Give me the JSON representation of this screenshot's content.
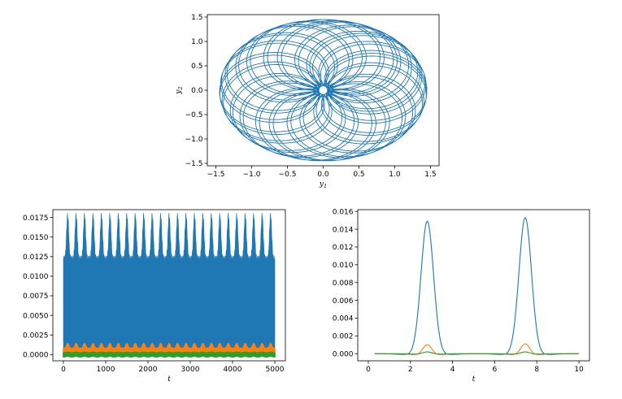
{
  "chart_data": [
    {
      "type": "line",
      "subtype": "phase-portrait",
      "title": "",
      "xlabel": "y",
      "xlabel_subscript": "1",
      "ylabel": "y",
      "ylabel_subscript": "2",
      "xlim": [
        -1.62,
        1.62
      ],
      "ylim": [
        -1.55,
        1.55
      ],
      "xticks": [
        "−1.5",
        "−1.0",
        "−0.5",
        "0.0",
        "0.5",
        "1.0",
        "1.5"
      ],
      "xtick_values": [
        -1.5,
        -1.0,
        -0.5,
        0.0,
        0.5,
        1.0,
        1.5
      ],
      "yticks": [
        "−1.5",
        "−1.0",
        "−0.5",
        "0.0",
        "0.5",
        "1.0",
        "1.5"
      ],
      "ytick_values": [
        -1.5,
        -1.0,
        -0.5,
        0.0,
        0.5,
        1.0,
        1.5
      ],
      "curve": {
        "outer_amplitude_x": 1.45,
        "outer_amplitude_y": 1.45,
        "inner_hole_radius": 0.05,
        "loops": 44
      },
      "series": [
        {
          "color": "#1f77b4"
        }
      ]
    },
    {
      "type": "area",
      "title": "",
      "xlabel": "t",
      "ylabel": "",
      "xlim": [
        -250,
        5250
      ],
      "ylim": [
        -0.0008,
        0.0185
      ],
      "xticks": [
        "0",
        "1000",
        "2000",
        "3000",
        "4000",
        "5000"
      ],
      "xtick_values": [
        0,
        1000,
        2000,
        3000,
        4000,
        5000
      ],
      "yticks": [
        "0.0000",
        "0.0025",
        "0.0050",
        "0.0075",
        "0.0100",
        "0.0125",
        "0.0150",
        "0.0175"
      ],
      "ytick_values": [
        0,
        0.0025,
        0.005,
        0.0075,
        0.01,
        0.0125,
        0.015,
        0.0175
      ],
      "series": [
        {
          "color": "#1f77b4",
          "band_min": 0.0,
          "band_max": 0.0178,
          "envelope_low_max": 0.0122,
          "peaks": 25
        },
        {
          "color": "#ff7f0e",
          "band_min": 0.0,
          "band_max": 0.0014,
          "envelope_low_max": 0.0008,
          "peaks": 25
        },
        {
          "color": "#2ca02c",
          "band_min": -0.0003,
          "band_max": 0.0003,
          "peaks": 25
        }
      ]
    },
    {
      "type": "line",
      "title": "",
      "xlabel": "t",
      "ylabel": "",
      "xlim": [
        -0.5,
        10.5
      ],
      "ylim": [
        -0.0008,
        0.0162
      ],
      "xticks": [
        "0",
        "2",
        "4",
        "6",
        "8",
        "10"
      ],
      "xtick_values": [
        0,
        2,
        4,
        6,
        8,
        10
      ],
      "yticks": [
        "0.000",
        "0.002",
        "0.004",
        "0.006",
        "0.008",
        "0.010",
        "0.012",
        "0.014",
        "0.016"
      ],
      "ytick_values": [
        0,
        0.002,
        0.004,
        0.006,
        0.008,
        0.01,
        0.012,
        0.014,
        0.016
      ],
      "series": [
        {
          "color": "#1f77b4",
          "peaks": [
            {
              "t": 2.8,
              "value": 0.0149,
              "width": 0.42
            },
            {
              "t": 7.45,
              "value": 0.0153,
              "width": 0.42
            }
          ],
          "dip": -0.00012
        },
        {
          "color": "#ff7f0e",
          "peaks": [
            {
              "t": 2.8,
              "value": 0.001,
              "width": 0.3
            },
            {
              "t": 7.45,
              "value": 0.0011,
              "width": 0.3
            }
          ],
          "dip": -0.0001
        },
        {
          "color": "#2ca02c",
          "peaks": [
            {
              "t": 2.8,
              "value": 0.0002,
              "width": 0.3
            },
            {
              "t": 7.45,
              "value": 0.0002,
              "width": 0.3
            }
          ],
          "dip": -4e-05
        }
      ]
    }
  ]
}
